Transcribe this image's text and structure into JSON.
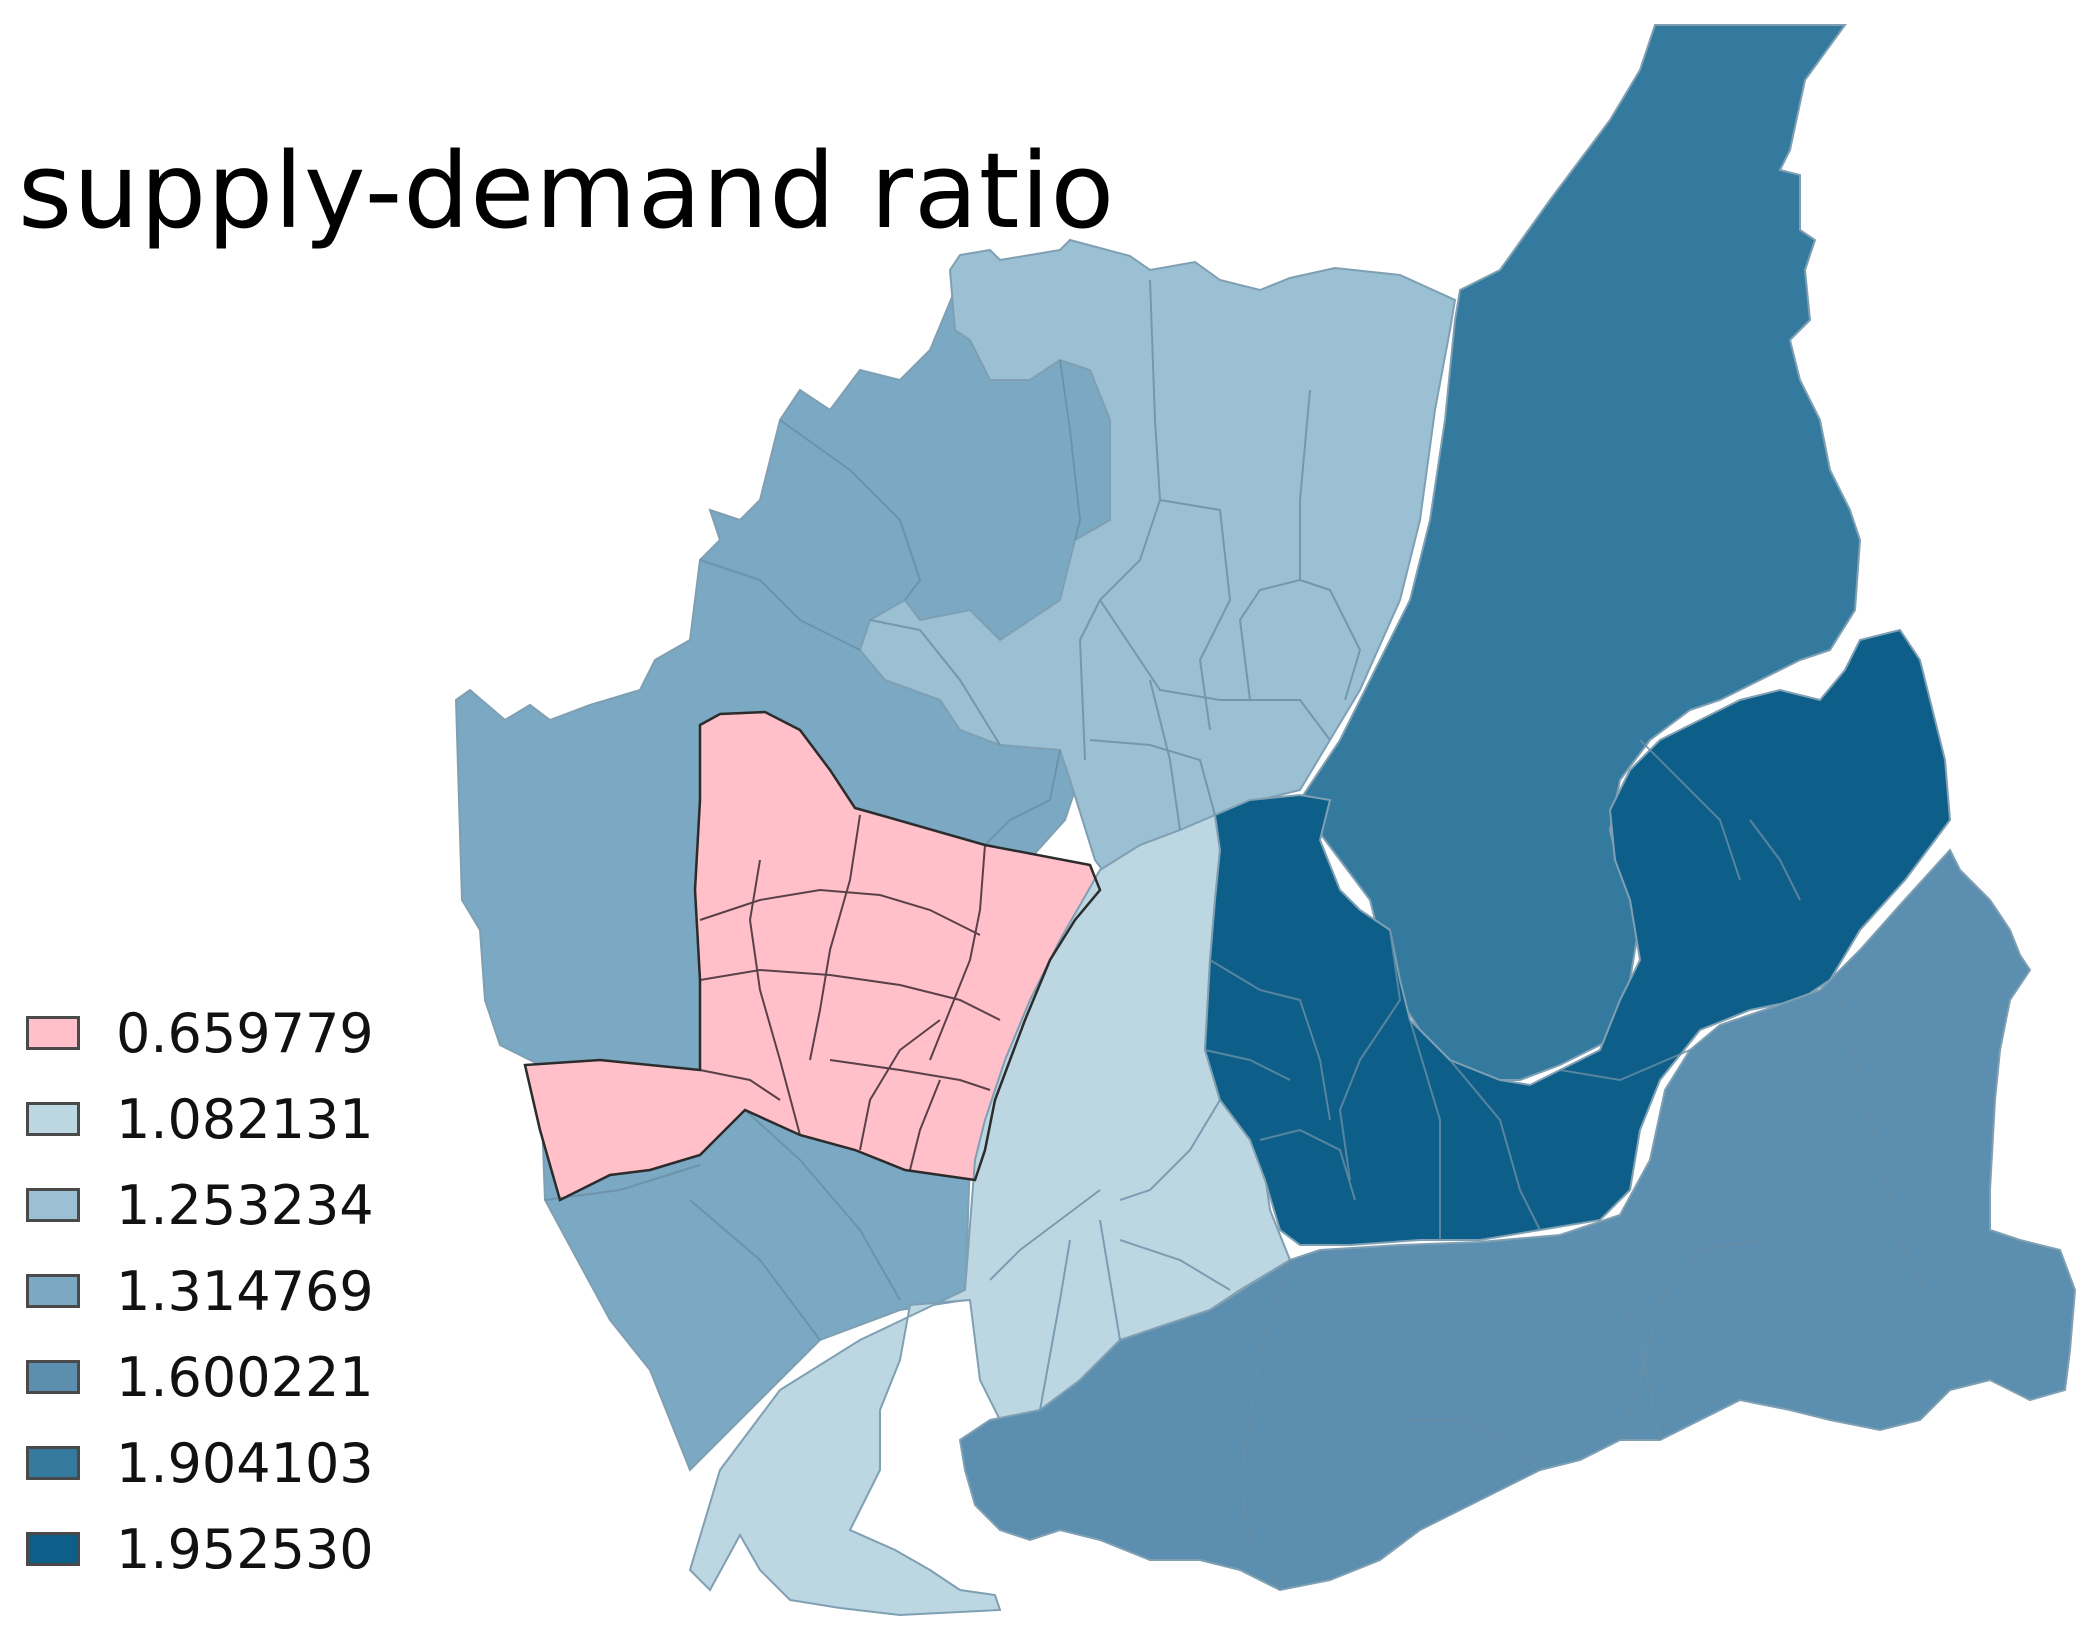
{
  "title": "supply-demand ratio",
  "legend": [
    {
      "label": "0.659779",
      "color": "#ffc0c9"
    },
    {
      "label": "1.082131",
      "color": "#bcd6e2"
    },
    {
      "label": "1.253234",
      "color": "#9bbfd3"
    },
    {
      "label": "1.314769",
      "color": "#7ba8c2"
    },
    {
      "label": "1.600221",
      "color": "#5b8eaf"
    },
    {
      "label": "1.904103",
      "color": "#347a9f"
    },
    {
      "label": "1.952530",
      "color": "#0d5f89"
    }
  ]
}
